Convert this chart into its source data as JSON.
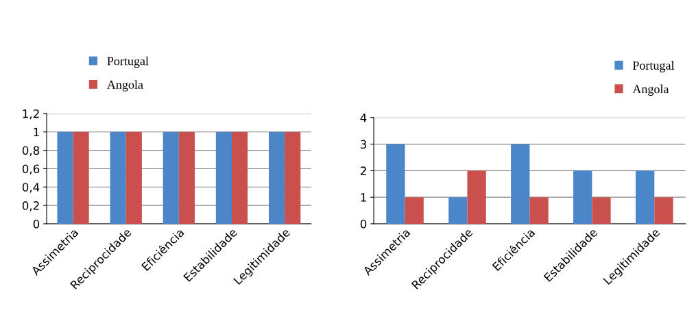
{
  "chart_data": [
    {
      "type": "bar",
      "categories": [
        "Assimetria",
        "Reciprocidade",
        "Eficiência",
        "Estabilidade",
        "Legitimidade"
      ],
      "series": [
        {
          "name": "Portugal",
          "color": "#4a86c8",
          "values": [
            1,
            1,
            1,
            1,
            1
          ]
        },
        {
          "name": "Angola",
          "color": "#c9504c",
          "values": [
            1,
            1,
            1,
            1,
            1
          ]
        }
      ],
      "ylim": [
        0,
        1.2
      ],
      "yticks": [
        0,
        {
          "value": 0.2,
          "label": "0,2"
        },
        {
          "value": 0.4,
          "label": "0,4"
        },
        {
          "value": 0.6,
          "label": "0,6"
        },
        {
          "value": 0.8,
          "label": "0,8"
        },
        1,
        {
          "value": 1.2,
          "label": "1,2"
        }
      ],
      "grid": "y",
      "legend": "top left"
    },
    {
      "type": "bar",
      "categories": [
        "Assimetria",
        "Reciprocidade",
        "Eficiência",
        "Estabilidade",
        "Legitimidade"
      ],
      "series": [
        {
          "name": "Portugal",
          "color": "#4a86c8",
          "values": [
            3,
            1,
            3,
            2,
            2
          ]
        },
        {
          "name": "Angola",
          "color": "#c9504c",
          "values": [
            1,
            2,
            1,
            1,
            1
          ]
        }
      ],
      "ylim": [
        0,
        4
      ],
      "yticks": [
        0,
        1,
        2,
        3,
        4
      ],
      "grid": "y",
      "legend": "top right"
    }
  ]
}
